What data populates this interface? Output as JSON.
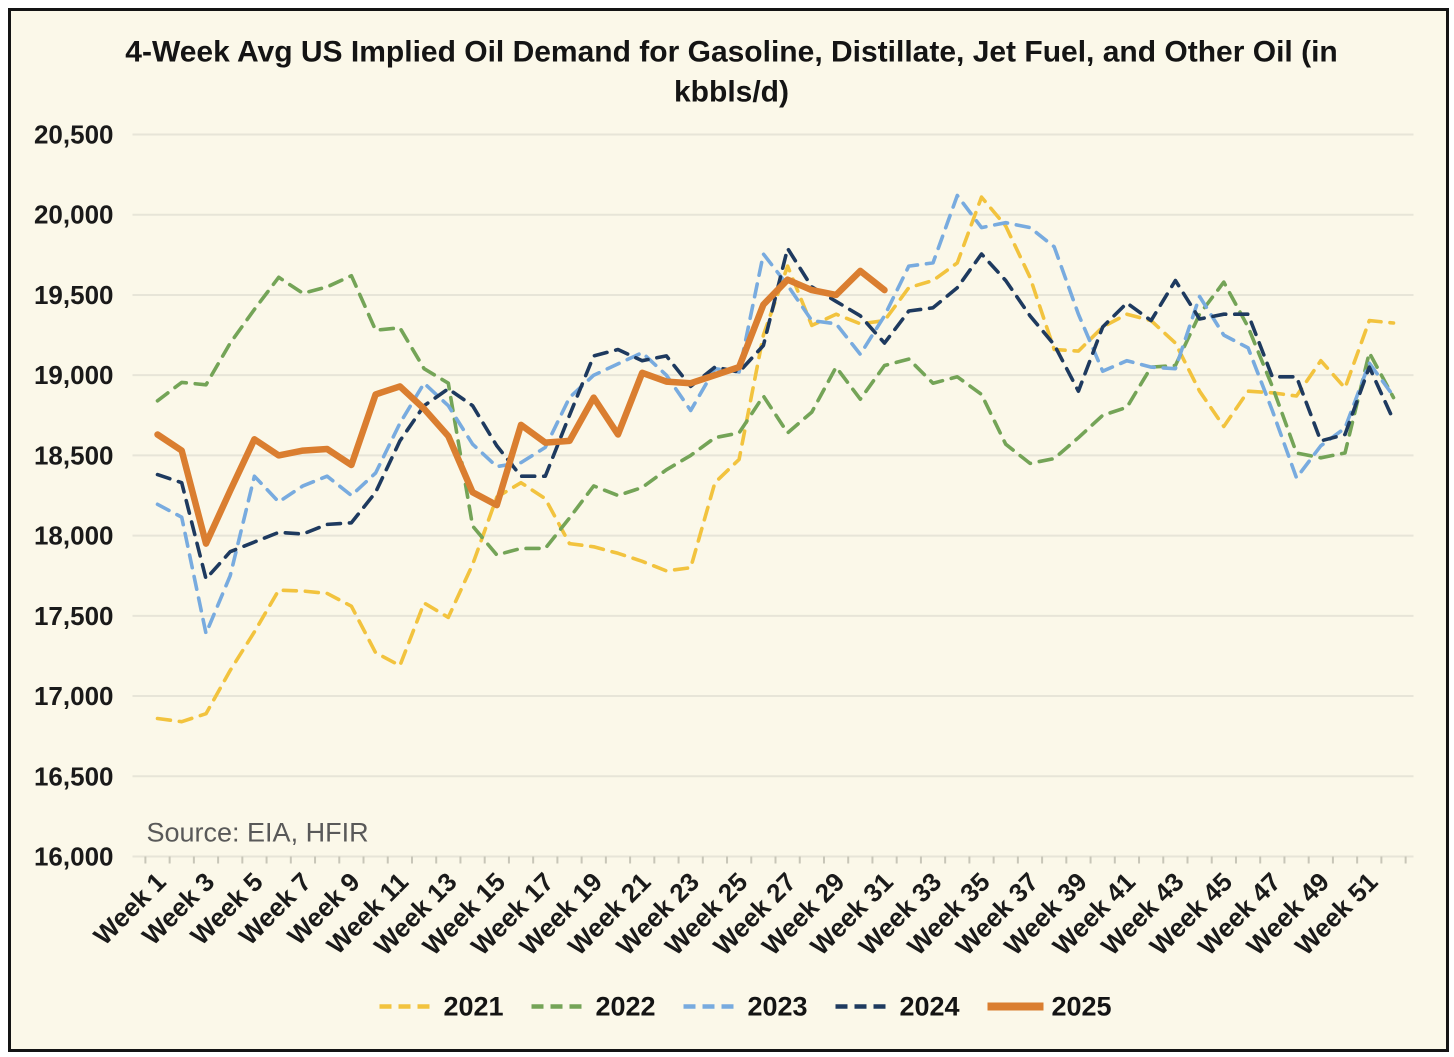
{
  "frame": {
    "background": "#FBF8E9",
    "border_color": "#141414"
  },
  "chart_data": {
    "type": "line",
    "title": "4-Week Avg US Implied Oil Demand for Gasoline, Distillate, Jet Fuel, and Other Oil (in kbbls/d)",
    "title_line1": "4-Week Avg US Implied Oil Demand for Gasoline, Distillate, Jet Fuel, and Other Oil (in",
    "title_line2": "kbbls/d)",
    "source": "Source: EIA, HFIR",
    "xlabel": "",
    "ylabel": "",
    "ylim": [
      16000,
      20500
    ],
    "y_step": 500,
    "grid": true,
    "gridline_color": "#E7E5D8",
    "axis_tick_color": "#C8C6B8",
    "legend_position": "bottom",
    "y_tick_labels": [
      "16,000",
      "16,500",
      "17,000",
      "17,500",
      "18,000",
      "18,500",
      "19,000",
      "19,500",
      "20,000",
      "20,500"
    ],
    "x_tick_labels": [
      "Week 1",
      "Week 3",
      "Week 5",
      "Week 7",
      "Week 9",
      "Week 11",
      "Week 13",
      "Week 15",
      "Week 17",
      "Week 19",
      "Week 21",
      "Week 23",
      "Week 25",
      "Week 27",
      "Week 29",
      "Week 31",
      "Week 33",
      "Week 35",
      "Week 37",
      "Week 39",
      "Week 41",
      "Week 43",
      "Week 45",
      "Week 47",
      "Week 49",
      "Week 51"
    ],
    "weeks": [
      1,
      2,
      3,
      4,
      5,
      6,
      7,
      8,
      9,
      10,
      11,
      12,
      13,
      14,
      15,
      16,
      17,
      18,
      19,
      20,
      21,
      22,
      23,
      24,
      25,
      26,
      27,
      28,
      29,
      30,
      31,
      32,
      33,
      34,
      35,
      36,
      37,
      38,
      39,
      40,
      41,
      42,
      43,
      44,
      45,
      46,
      47,
      48,
      49,
      50,
      51,
      52
    ],
    "series": [
      {
        "name": "2021",
        "color": "#F2C33E",
        "style": "dashed",
        "values": [
          16860,
          16840,
          16890,
          17160,
          17400,
          17660,
          17655,
          17640,
          17560,
          17270,
          17190,
          17580,
          17490,
          17820,
          18240,
          18330,
          18230,
          17950,
          17930,
          17890,
          17840,
          17780,
          17800,
          18330,
          18475,
          19250,
          19680,
          19310,
          19380,
          19320,
          19340,
          19545,
          19590,
          19700,
          20110,
          19930,
          19610,
          19160,
          19150,
          19300,
          19380,
          19340,
          19200,
          18900,
          18680,
          18900,
          18890,
          18870,
          19090,
          18920,
          19340,
          19325
        ]
      },
      {
        "name": "2022",
        "color": "#74A457",
        "style": "dashed",
        "values": [
          18840,
          18955,
          18940,
          19200,
          19410,
          19610,
          19510,
          19550,
          19620,
          19280,
          19295,
          19040,
          18950,
          18060,
          17880,
          17920,
          17920,
          18110,
          18310,
          18250,
          18300,
          18410,
          18500,
          18610,
          18640,
          18870,
          18640,
          18770,
          19050,
          18850,
          19060,
          19100,
          18950,
          18990,
          18880,
          18570,
          18450,
          18480,
          18610,
          18750,
          18800,
          19050,
          19060,
          19380,
          19580,
          19300,
          18930,
          18515,
          18485,
          18515,
          19140,
          18860
        ]
      },
      {
        "name": "2023",
        "color": "#78ABDF",
        "style": "dashed",
        "values": [
          18195,
          18115,
          17390,
          17750,
          18370,
          18210,
          18310,
          18370,
          18250,
          18390,
          18700,
          18950,
          18810,
          18570,
          18430,
          18455,
          18550,
          18860,
          19000,
          19070,
          19140,
          19000,
          18780,
          19040,
          19020,
          19755,
          19560,
          19340,
          19320,
          19130,
          19370,
          19680,
          19700,
          20120,
          19920,
          19950,
          19920,
          19800,
          19380,
          19025,
          19090,
          19050,
          19040,
          19490,
          19250,
          19170,
          18780,
          18360,
          18560,
          18670,
          19075,
          18870
        ]
      },
      {
        "name": "2024",
        "color": "#1E3A5F",
        "style": "dashed",
        "values": [
          18380,
          18330,
          17730,
          17900,
          17960,
          18020,
          18010,
          18070,
          18080,
          18270,
          18590,
          18810,
          18915,
          18810,
          18560,
          18370,
          18370,
          18750,
          19120,
          19160,
          19090,
          19120,
          18930,
          19050,
          19020,
          19185,
          19790,
          19550,
          19460,
          19370,
          19200,
          19400,
          19420,
          19545,
          19755,
          19590,
          19370,
          19190,
          18900,
          19300,
          19450,
          19340,
          19590,
          19350,
          19380,
          19380,
          18990,
          18990,
          18590,
          18630,
          19050,
          18720
        ]
      },
      {
        "name": "2025",
        "color": "#DA7E30",
        "style": "solid",
        "values": [
          18630,
          18530,
          17950,
          18280,
          18600,
          18500,
          18530,
          18540,
          18440,
          18880,
          18930,
          18790,
          18620,
          18270,
          18190,
          18690,
          18580,
          18590,
          18860,
          18630,
          19015,
          18960,
          18950,
          19000,
          19050,
          19440,
          19595,
          19530,
          19500,
          19650,
          19530
        ]
      }
    ]
  }
}
